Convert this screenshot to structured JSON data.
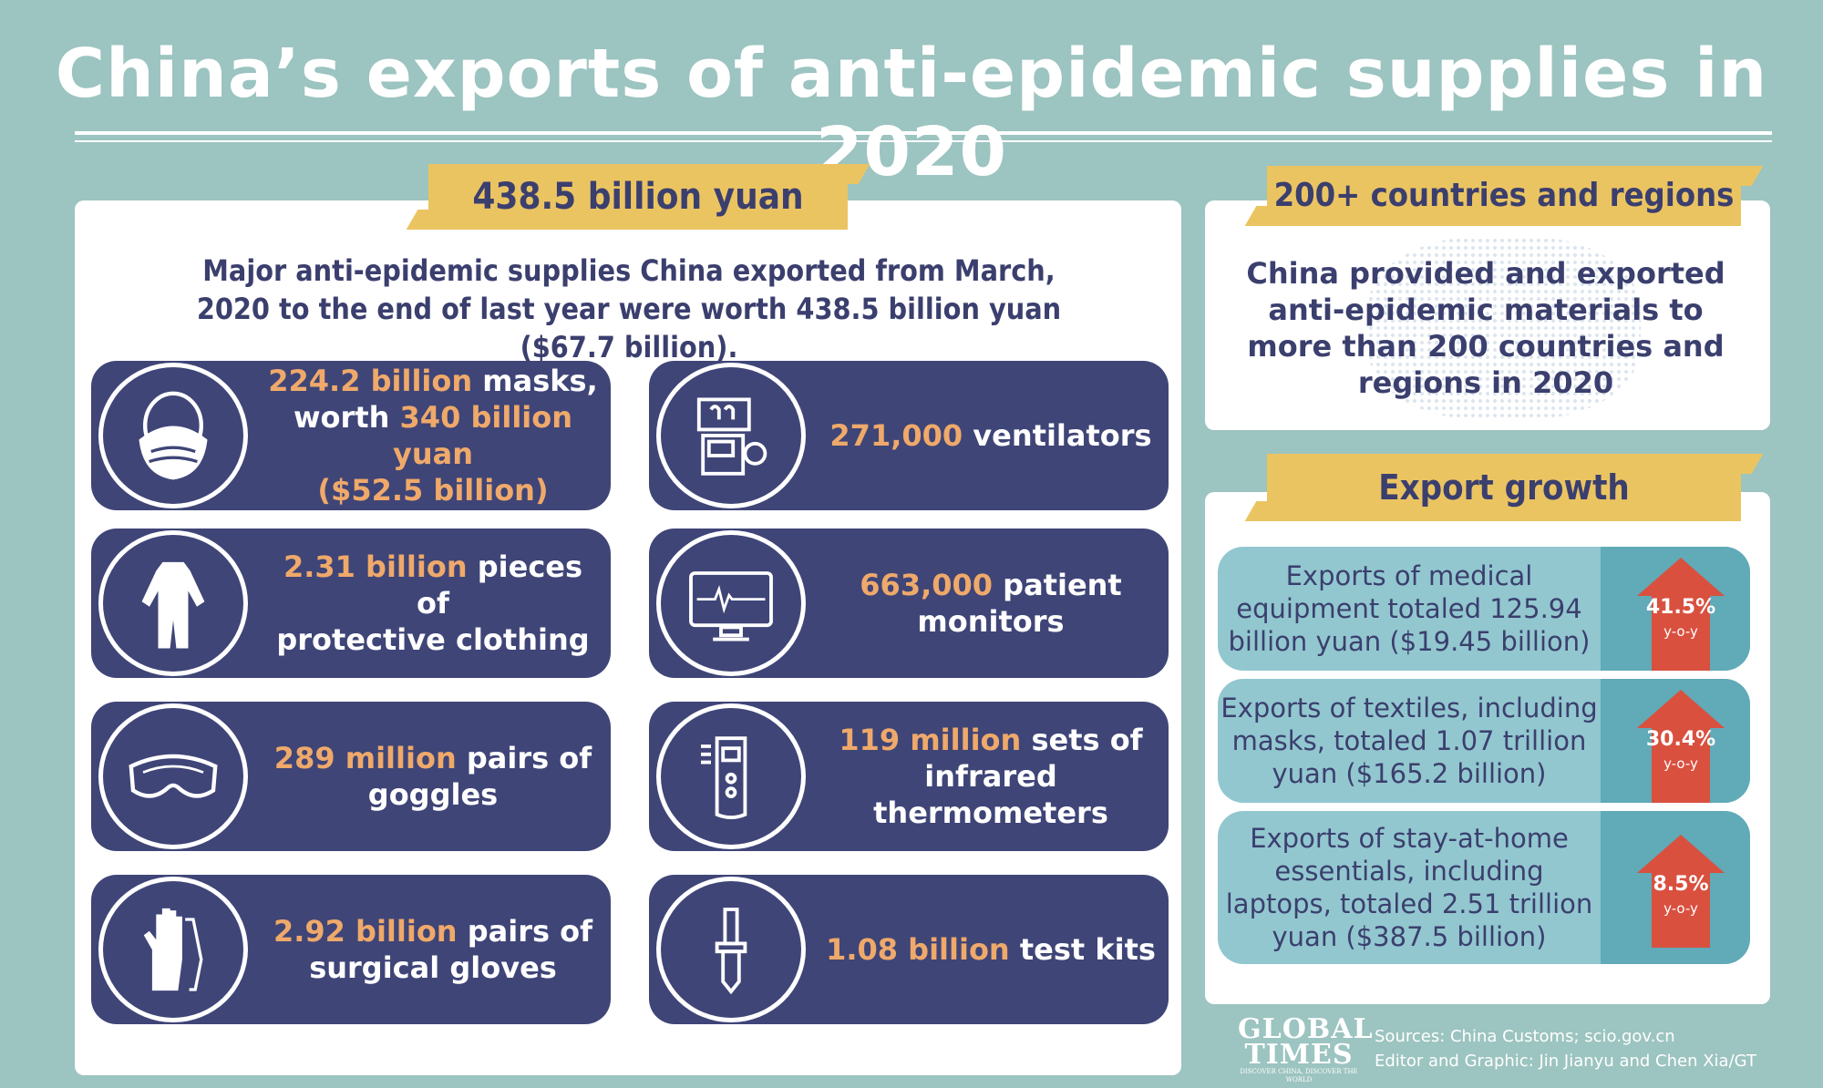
{
  "title": "China’s exports of anti-epidemic supplies in 2020",
  "total_banner": "438.5 billion yuan",
  "lead_text": "Major anti-epidemic supplies China exported from March, 2020 to the end of last year were worth 438.5 billion yuan ($67.7 billion).",
  "items": [
    {
      "icon": "mask-icon",
      "hl1": "224.2 billion",
      "t1": " masks,",
      "t2": "worth ",
      "hl2": "340 billion yuan",
      "t3": "($52.5 billion)"
    },
    {
      "icon": "ventilator-icon",
      "hl1": "271,000",
      "t1": " ventilators"
    },
    {
      "icon": "protective-suit-icon",
      "hl1": "2.31 billion",
      "t1": " pieces of",
      "t2": "protective clothing"
    },
    {
      "icon": "patient-monitor-icon",
      "hl1": "663,000",
      "t1": " patient",
      "t2": "monitors"
    },
    {
      "icon": "goggles-icon",
      "hl1": "289 million",
      "t1": " pairs of",
      "t2": "goggles"
    },
    {
      "icon": "thermometer-icon",
      "hl1": "119 million",
      "t1": " sets of",
      "t2": "infrared thermometers"
    },
    {
      "icon": "gloves-icon",
      "hl1": "2.92 billion",
      "t1": " pairs of",
      "t2": "surgical gloves"
    },
    {
      "icon": "test-kit-icon",
      "hl1": "1.08 billion",
      "t1": " test kits"
    }
  ],
  "countries": {
    "banner": "200+ countries and regions",
    "text": "China provided and exported anti-epidemic materials to more than 200 countries and regions in 2020"
  },
  "growth": {
    "banner": "Export growth",
    "rows": [
      {
        "a": "Exports of medical equipment totaled ",
        "hl": "125.94 billion yuan",
        "b": " ($19.45 billion)",
        "pct": "41.5%",
        "yoy": "y-o-y"
      },
      {
        "a": "Exports of textiles, including masks, totaled ",
        "hl": "1.07 trillion yuan",
        "b": " ($165.2 billion)",
        "pct": "30.4%",
        "yoy": "y-o-y"
      },
      {
        "a": "Exports of stay-at-home essentials, including laptops, totaled ",
        "hl": "2.51 trillion yuan",
        "b": " ($387.5 billion)",
        "pct": "8.5%",
        "yoy": "y-o-y"
      }
    ]
  },
  "logo": {
    "line1": "GLOBAL",
    "line2": "TIMES",
    "tag": "DISCOVER CHINA, DISCOVER THE WORLD"
  },
  "sources": "Sources: China Customs; scio.gov.cn",
  "editor": "Editor and Graphic: Jin Jianyu and Chen Xia/GT"
}
